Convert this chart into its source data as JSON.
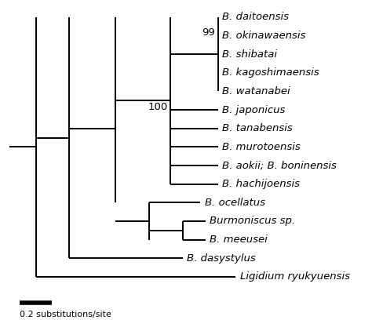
{
  "taxa": [
    "B. daitoensis",
    "B. okinawaensis",
    "B. shibatai",
    "B. kagoshimaensis",
    "B. watanabei",
    "B. japonicus",
    "B. tanabensis",
    "B. murotoensis",
    "B. aokii; B. boninensis",
    "B. hachijoensis",
    "B. ocellatus",
    "Burmoniscus sp.",
    "B. meeusei",
    "B. dasystylus",
    "Ligidium ryukyuensis"
  ],
  "scale_bar_label": "0.2 substitutions/site",
  "bg_color": "#ffffff",
  "line_color": "#000000",
  "font_size": 9.5,
  "bootstrap_99": "99",
  "bootstrap_100": "100"
}
